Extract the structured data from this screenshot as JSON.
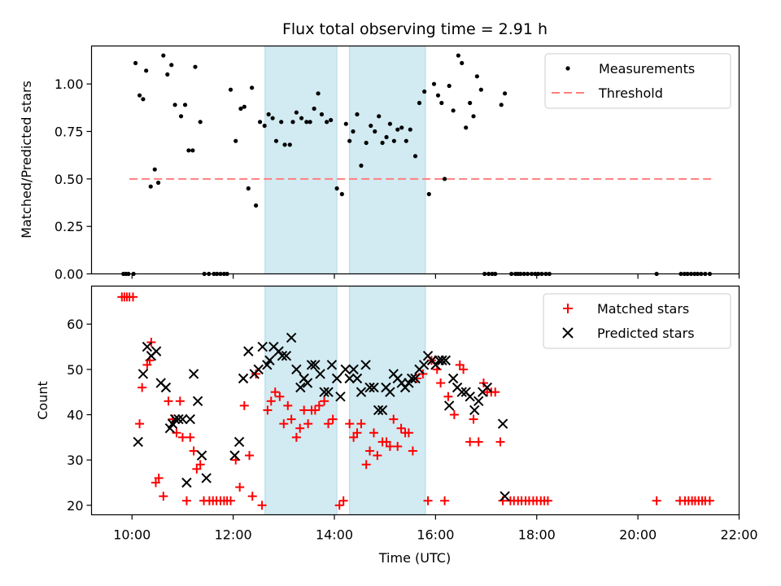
{
  "chart_data": [
    {
      "type": "scatter",
      "title": "Flux total observing time = 2.91 h",
      "xlabel": "",
      "ylabel": "Matched/Predicted stars",
      "xlim_hours": [
        9.2,
        22.0
      ],
      "ylim": [
        0,
        1.2
      ],
      "yticks": [
        0.0,
        0.25,
        0.5,
        0.75,
        1.0
      ],
      "ytick_labels": [
        "0.00",
        "0.25",
        "0.50",
        "0.75",
        "1.00"
      ],
      "grid": false,
      "legend_position": "top-right",
      "shaded_intervals_hours": [
        [
          12.63,
          14.05
        ],
        [
          14.3,
          15.8
        ]
      ],
      "shade_color": "#add8e6",
      "series": [
        {
          "name": "Measurements",
          "marker": "dot",
          "color": "#000000",
          "x_hours": [
            9.83,
            9.88,
            9.93,
            10.03,
            10.07,
            10.15,
            10.22,
            10.28,
            10.37,
            10.45,
            10.52,
            10.62,
            10.7,
            10.78,
            10.85,
            10.97,
            11.05,
            11.12,
            11.2,
            11.25,
            11.35,
            11.43,
            11.52,
            11.62,
            11.68,
            11.75,
            11.82,
            11.88,
            11.95,
            12.05,
            12.15,
            12.22,
            12.3,
            12.37,
            12.45,
            12.53,
            12.62,
            12.7,
            12.78,
            12.85,
            12.95,
            13.02,
            13.12,
            13.18,
            13.25,
            13.35,
            13.45,
            13.52,
            13.6,
            13.68,
            13.75,
            13.85,
            13.93,
            14.05,
            14.15,
            14.23,
            14.3,
            14.37,
            14.45,
            14.53,
            14.63,
            14.72,
            14.8,
            14.88,
            14.95,
            15.03,
            15.1,
            15.18,
            15.25,
            15.33,
            15.42,
            15.5,
            15.6,
            15.68,
            15.78,
            15.87,
            15.97,
            16.05,
            16.12,
            16.18,
            16.27,
            16.35,
            16.45,
            16.52,
            16.6,
            16.68,
            16.75,
            16.82,
            16.9,
            16.97,
            17.05,
            17.12,
            17.18,
            17.3,
            17.37,
            17.5,
            17.58,
            17.63,
            17.68,
            17.75,
            17.82,
            17.9,
            17.97,
            18.03,
            18.1,
            18.18,
            18.25,
            20.37,
            20.85,
            20.92,
            20.98,
            21.05,
            21.12,
            21.18,
            21.25,
            21.33,
            21.42
          ],
          "y": [
            0.0,
            0.0,
            0.0,
            0.0,
            1.11,
            0.94,
            0.92,
            1.07,
            0.46,
            0.55,
            0.48,
            1.15,
            1.05,
            1.1,
            0.89,
            0.83,
            0.89,
            0.65,
            0.65,
            1.09,
            0.8,
            0.0,
            0.0,
            0.0,
            0.0,
            0.0,
            0.0,
            0.0,
            0.97,
            0.7,
            0.87,
            0.88,
            0.45,
            0.98,
            0.36,
            0.8,
            0.78,
            0.84,
            0.82,
            0.7,
            0.8,
            0.68,
            0.68,
            0.8,
            0.85,
            0.82,
            0.8,
            0.8,
            0.87,
            0.95,
            0.84,
            0.8,
            0.81,
            0.45,
            0.42,
            0.79,
            0.7,
            0.75,
            0.84,
            0.57,
            0.69,
            0.78,
            0.75,
            0.83,
            0.69,
            0.72,
            0.79,
            0.7,
            0.76,
            0.77,
            0.7,
            0.76,
            0.62,
            0.9,
            0.96,
            0.42,
            1.0,
            0.94,
            0.9,
            0.5,
            0.99,
            0.86,
            1.15,
            1.11,
            0.77,
            0.9,
            0.83,
            1.04,
            0.97,
            0.0,
            0.0,
            0.0,
            0.0,
            0.89,
            0.95,
            0.0,
            0.0,
            0.0,
            0.0,
            0.0,
            0.0,
            0.0,
            0.0,
            0.0,
            0.0,
            0.0,
            0.0,
            0.0,
            0.0,
            0.0,
            0.0,
            0.0,
            0.0,
            0.0,
            0.0,
            0.0,
            0.0
          ]
        },
        {
          "name": "Threshold",
          "marker": "dashed-line",
          "color": "#ff7f7f",
          "x_hours": [
            9.95,
            21.45
          ],
          "y": [
            0.5,
            0.5
          ]
        }
      ]
    },
    {
      "type": "scatter",
      "title": "",
      "xlabel": "Time (UTC)",
      "ylabel": "Count",
      "xlim_hours": [
        9.2,
        22.0
      ],
      "ylim": [
        17.9,
        68.4
      ],
      "yticks": [
        20,
        30,
        40,
        50,
        60
      ],
      "ytick_labels": [
        "20",
        "30",
        "40",
        "50",
        "60"
      ],
      "xticks_hours": [
        10,
        12,
        14,
        16,
        18,
        20,
        22
      ],
      "xtick_labels": [
        "10:00",
        "12:00",
        "14:00",
        "16:00",
        "18:00",
        "20:00",
        "22:00"
      ],
      "grid": false,
      "legend_position": "top-right",
      "shaded_intervals_hours": [
        [
          12.63,
          14.05
        ],
        [
          14.3,
          15.8
        ]
      ],
      "shade_color": "#add8e6",
      "series": [
        {
          "name": "Matched stars",
          "marker": "plus",
          "color": "#ff0000",
          "x_hours": [
            9.8,
            9.85,
            9.9,
            9.95,
            10.02,
            10.15,
            10.2,
            10.3,
            10.35,
            10.38,
            10.47,
            10.53,
            10.62,
            10.72,
            10.8,
            10.88,
            10.95,
            11.0,
            11.08,
            11.15,
            11.22,
            11.28,
            11.35,
            11.42,
            11.53,
            11.6,
            11.67,
            11.75,
            11.82,
            11.88,
            11.95,
            12.05,
            12.13,
            12.22,
            12.32,
            12.38,
            12.45,
            12.57,
            12.68,
            12.75,
            12.83,
            12.92,
            13.0,
            13.08,
            13.15,
            13.25,
            13.32,
            13.4,
            13.48,
            13.55,
            13.62,
            13.7,
            13.8,
            13.88,
            13.97,
            14.1,
            14.18,
            14.3,
            14.38,
            14.45,
            14.53,
            14.63,
            14.7,
            14.78,
            14.85,
            14.95,
            15.03,
            15.1,
            15.17,
            15.25,
            15.32,
            15.4,
            15.47,
            15.55,
            15.63,
            15.75,
            15.85,
            15.92,
            16.03,
            16.1,
            16.18,
            16.25,
            16.37,
            16.48,
            16.55,
            16.68,
            16.75,
            16.85,
            16.95,
            17.02,
            17.1,
            17.18,
            17.28,
            17.33,
            17.48,
            17.55,
            17.63,
            17.7,
            17.78,
            17.85,
            17.93,
            18.0,
            18.08,
            18.15,
            18.22,
            20.37,
            20.83,
            20.93,
            21.0,
            21.07,
            21.13,
            21.2,
            21.27,
            21.33,
            21.42
          ],
          "y": [
            66,
            66,
            66,
            66,
            66,
            38,
            46,
            51,
            52,
            56,
            25,
            26,
            22,
            43,
            39,
            36,
            43,
            35,
            21,
            35,
            32,
            28,
            29,
            21,
            21,
            21,
            21,
            21,
            21,
            21,
            21,
            30,
            24,
            42,
            31,
            22,
            49,
            20,
            41,
            43,
            45,
            44,
            38,
            42,
            39,
            35,
            37,
            41,
            38,
            41,
            41,
            42,
            43,
            38,
            39,
            20,
            21,
            38,
            35,
            36,
            38,
            29,
            32,
            36,
            31,
            34,
            34,
            33,
            39,
            33,
            37,
            36,
            36,
            32,
            48,
            49,
            21,
            52,
            50,
            47,
            21,
            44,
            40,
            51,
            50,
            34,
            39,
            34,
            47,
            45,
            45,
            45,
            34,
            21,
            21,
            21,
            21,
            21,
            21,
            21,
            21,
            21,
            21,
            21,
            21,
            21,
            21,
            21,
            21,
            21,
            21,
            21,
            21,
            21,
            21
          ]
        },
        {
          "name": "Predicted stars",
          "marker": "x",
          "color": "#000000",
          "x_hours": [
            10.12,
            10.22,
            10.3,
            10.38,
            10.48,
            10.57,
            10.67,
            10.75,
            10.8,
            10.85,
            10.92,
            11.0,
            11.08,
            11.15,
            11.22,
            11.3,
            11.38,
            11.47,
            12.03,
            12.12,
            12.2,
            12.3,
            12.42,
            12.5,
            12.58,
            12.67,
            12.72,
            12.8,
            12.9,
            12.97,
            13.05,
            13.15,
            13.25,
            13.33,
            13.4,
            13.47,
            13.55,
            13.62,
            13.72,
            13.8,
            13.88,
            13.95,
            14.05,
            14.12,
            14.22,
            14.3,
            14.38,
            14.45,
            14.53,
            14.62,
            14.7,
            14.78,
            14.87,
            14.95,
            15.02,
            15.1,
            15.17,
            15.25,
            15.33,
            15.4,
            15.47,
            15.53,
            15.6,
            15.68,
            15.77,
            15.85,
            15.93,
            16.0,
            16.07,
            16.13,
            16.2,
            16.27,
            16.35,
            16.43,
            16.52,
            16.6,
            16.68,
            16.77,
            16.85,
            16.93,
            17.02,
            17.33,
            17.37
          ],
          "y": [
            34,
            49,
            55,
            53,
            54,
            47,
            46,
            37,
            38,
            39,
            39,
            39,
            25,
            39,
            49,
            43,
            31,
            26,
            31,
            34,
            48,
            54,
            49,
            50,
            55,
            51,
            52,
            55,
            54,
            53,
            53,
            57,
            50,
            46,
            48,
            47,
            51,
            51,
            49,
            45,
            45,
            51,
            48,
            44,
            50,
            48,
            50,
            48,
            45,
            51,
            46,
            46,
            41,
            41,
            46,
            45,
            49,
            48,
            47,
            46,
            47,
            48,
            48,
            50,
            51,
            53,
            52,
            51,
            52,
            52,
            52,
            42,
            48,
            46,
            45,
            45,
            44,
            41,
            43,
            45,
            46,
            38,
            22
          ]
        }
      ]
    }
  ]
}
